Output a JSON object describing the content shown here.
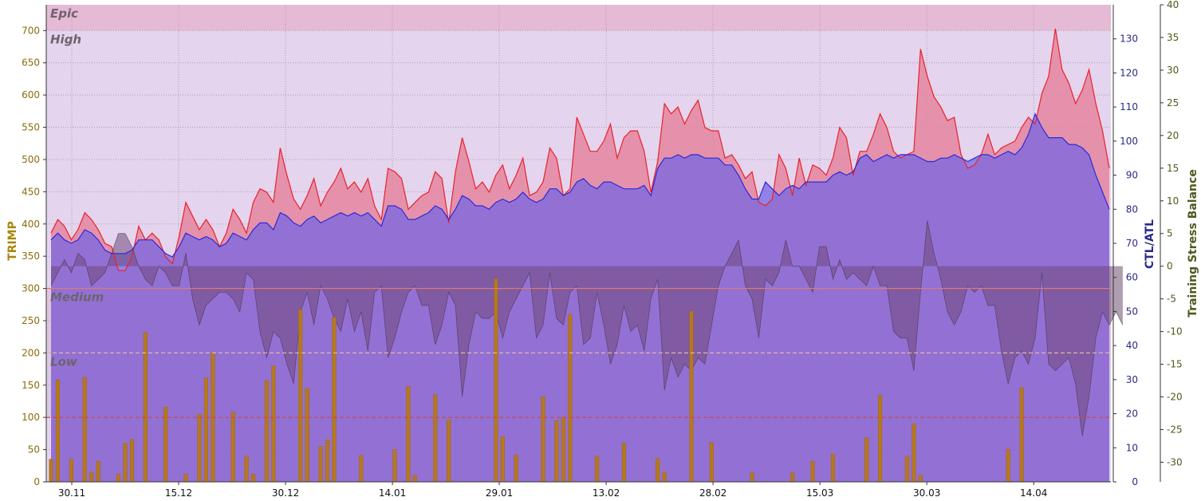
{
  "chart_data": {
    "type": "combo",
    "axes": {
      "left": {
        "label": "TRIMP",
        "ylim": [
          0,
          740
        ],
        "ticks": [
          0,
          50,
          100,
          150,
          200,
          250,
          300,
          350,
          400,
          450,
          500,
          550,
          600,
          650,
          700
        ]
      },
      "middle": {
        "label": "CTL/ATL",
        "ylim": [
          0,
          140
        ],
        "ticks": [
          0,
          10,
          20,
          30,
          40,
          50,
          60,
          70,
          80,
          90,
          100,
          110,
          120,
          130
        ]
      },
      "right": {
        "label": "Training Stress Balance",
        "ylim": [
          -33,
          40
        ],
        "ticks": [
          -30,
          -25,
          -20,
          -15,
          -10,
          -5,
          0,
          5,
          10,
          15,
          20,
          25,
          30,
          35,
          40
        ]
      }
    },
    "x_ticks": [
      "30.11",
      "15.12",
      "30.12",
      "14.01",
      "29.01",
      "13.02",
      "28.02",
      "15.03",
      "30.03",
      "14.04"
    ],
    "zones": [
      {
        "label": "Epic",
        "from": 700,
        "to": 740,
        "color": "#ffdede"
      },
      {
        "label": "High",
        "from": 300,
        "to": 700,
        "color": "#ffffff"
      },
      {
        "label": "Medium",
        "from": 200,
        "to": 300,
        "color": "#f6ece9"
      },
      {
        "label": "Low",
        "from": 100,
        "to": 200,
        "color": "#f3f0f0"
      }
    ],
    "zone_lines": [
      {
        "value": 300,
        "color": "#e37a6a",
        "dash": false
      },
      {
        "value": 200,
        "color": "#e0b6a3",
        "dash": true
      },
      {
        "value": 100,
        "color": "#c84848",
        "dash": true
      }
    ],
    "n_days": 158,
    "series": [
      {
        "name": "ATL",
        "axis": "middle",
        "color": "#e8222a",
        "fill": "#ff9a9a",
        "values": [
          73,
          77,
          75,
          71,
          74,
          79,
          77,
          74,
          70,
          69,
          62,
          62,
          66,
          75,
          71,
          73,
          71,
          66,
          64,
          72,
          82,
          78,
          74,
          77,
          74,
          69,
          73,
          80,
          77,
          73,
          82,
          86,
          85,
          82,
          98,
          90,
          83,
          80,
          84,
          89,
          81,
          85,
          88,
          92,
          86,
          88,
          85,
          89,
          81,
          77,
          92,
          91,
          89,
          80,
          82,
          84,
          85,
          91,
          89,
          76,
          91,
          101,
          94,
          86,
          88,
          85,
          90,
          93,
          86,
          90,
          95,
          84,
          85,
          88,
          98,
          95,
          84,
          86,
          107,
          102,
          97,
          97,
          100,
          105,
          95,
          101,
          103,
          103,
          97,
          85,
          94,
          111,
          108,
          110,
          105,
          109,
          112,
          104,
          103,
          103,
          95,
          96,
          93,
          89,
          91,
          82,
          81,
          83,
          96,
          92,
          84,
          95,
          87,
          93,
          92,
          90,
          95,
          104,
          101,
          90,
          97,
          97,
          102,
          108,
          104,
          97,
          95,
          96,
          97,
          127,
          119,
          113,
          110,
          106,
          107,
          96,
          92,
          93,
          96,
          102,
          96,
          98,
          99,
          100,
          104,
          107,
          105,
          114,
          119,
          133,
          121,
          117,
          111,
          115,
          121,
          111,
          103,
          92
        ]
      },
      {
        "name": "CTL",
        "axis": "middle",
        "color": "#2a2ad8",
        "fill": "#7373f0",
        "values": [
          71,
          73,
          71,
          70,
          71,
          74,
          73,
          71,
          68,
          67,
          67,
          67,
          68,
          71,
          71,
          71,
          69,
          67,
          66,
          69,
          73,
          72,
          71,
          72,
          71,
          69,
          70,
          73,
          72,
          71,
          74,
          76,
          76,
          74,
          79,
          78,
          76,
          75,
          77,
          78,
          76,
          77,
          78,
          79,
          78,
          79,
          78,
          79,
          77,
          75,
          81,
          81,
          80,
          77,
          77,
          78,
          79,
          81,
          80,
          77,
          80,
          84,
          83,
          81,
          81,
          80,
          82,
          83,
          82,
          83,
          85,
          83,
          82,
          83,
          86,
          86,
          84,
          85,
          88,
          89,
          87,
          86,
          88,
          88,
          87,
          86,
          86,
          86,
          87,
          84,
          92,
          95,
          95,
          96,
          95,
          96,
          96,
          95,
          95,
          95,
          93,
          93,
          90,
          86,
          83,
          83,
          88,
          86,
          84,
          86,
          87,
          86,
          88,
          88,
          88,
          88,
          90,
          91,
          90,
          91,
          95,
          96,
          94,
          95,
          96,
          95,
          96,
          96,
          96,
          95,
          94,
          94,
          95,
          95,
          96,
          95,
          94,
          95,
          96,
          96,
          95,
          96,
          97,
          96,
          98,
          102,
          108,
          104,
          101,
          101,
          101,
          99,
          99,
          98,
          96,
          90,
          85,
          80
        ]
      },
      {
        "name": "Training Stress Balance",
        "axis": "right",
        "color": "#5a4363",
        "fill": "#6b4f6e",
        "values": [
          -3,
          -1,
          1,
          -1,
          2,
          1,
          -3,
          -2,
          -1,
          2,
          5,
          5,
          3,
          0,
          -2,
          -3,
          0,
          -1,
          -3,
          -3,
          2,
          -5,
          -9,
          -6,
          -5,
          -4,
          -4,
          -5,
          -7,
          -1,
          -2,
          -10,
          -14,
          -10,
          -11,
          -15,
          -18,
          -7,
          -4,
          -9,
          -3,
          -5,
          -8,
          -10,
          -5,
          -10,
          -7,
          -13,
          -4,
          -3,
          -14,
          -11,
          -7,
          -4,
          -3,
          -6,
          -6,
          -12,
          -9,
          -4,
          -6,
          -20,
          -12,
          -7,
          -8,
          -8,
          -7,
          -11,
          -7,
          -5,
          -3,
          -1,
          -11,
          -9,
          -1,
          -8,
          -9,
          -4,
          -3,
          -12,
          -11,
          -4,
          -9,
          -15,
          -12,
          -6,
          -10,
          -9,
          -13,
          -5,
          -2,
          -19,
          -14,
          -17,
          -15,
          -16,
          -14,
          -15,
          -9,
          -3,
          0,
          2,
          4,
          -3,
          -5,
          -11,
          -2,
          -3,
          -1,
          4,
          0,
          0,
          -2,
          -4,
          3,
          3,
          -2,
          1,
          -2,
          -1,
          -2,
          -3,
          0,
          -3,
          -3,
          -10,
          -11,
          -11,
          -16,
          -4,
          7,
          2,
          -2,
          -7,
          -9,
          -7,
          -3,
          -4,
          -3,
          -6,
          -6,
          -13,
          -18,
          -14,
          -13,
          -15,
          -11,
          -1,
          -15,
          -16,
          -15,
          -14,
          -18,
          -26,
          -20,
          -11,
          -7,
          -9,
          -7,
          -9
        ]
      },
      {
        "name": "TRIMP",
        "axis": "left",
        "color": "#a0631a",
        "values": [
          35,
          158,
          0,
          35,
          0,
          162,
          15,
          32,
          0,
          0,
          12,
          60,
          66,
          0,
          232,
          0,
          0,
          116,
          0,
          0,
          12,
          0,
          105,
          161,
          200,
          0,
          0,
          108,
          0,
          40,
          12,
          0,
          157,
          180,
          0,
          0,
          0,
          267,
          145,
          0,
          55,
          65,
          255,
          0,
          0,
          0,
          41,
          0,
          0,
          0,
          0,
          50,
          0,
          148,
          10,
          0,
          0,
          135,
          0,
          96,
          0,
          0,
          0,
          0,
          0,
          0,
          315,
          70,
          0,
          42,
          0,
          0,
          0,
          132,
          0,
          95,
          100,
          260,
          0,
          0,
          0,
          40,
          0,
          0,
          0,
          60,
          0,
          0,
          0,
          0,
          36,
          15,
          0,
          0,
          0,
          265,
          0,
          0,
          61,
          0,
          0,
          0,
          0,
          0,
          14,
          0,
          0,
          0,
          0,
          0,
          14,
          0,
          0,
          32,
          0,
          0,
          43,
          0,
          0,
          0,
          0,
          68,
          0,
          134,
          0,
          0,
          0,
          40,
          90,
          10,
          0,
          0,
          0,
          0,
          0,
          0,
          0,
          0,
          0,
          0,
          0,
          0,
          50,
          0,
          146,
          0,
          0,
          0,
          0,
          0,
          0,
          0,
          0,
          0,
          0,
          0,
          0,
          0,
          0,
          0,
          0
        ]
      }
    ]
  }
}
